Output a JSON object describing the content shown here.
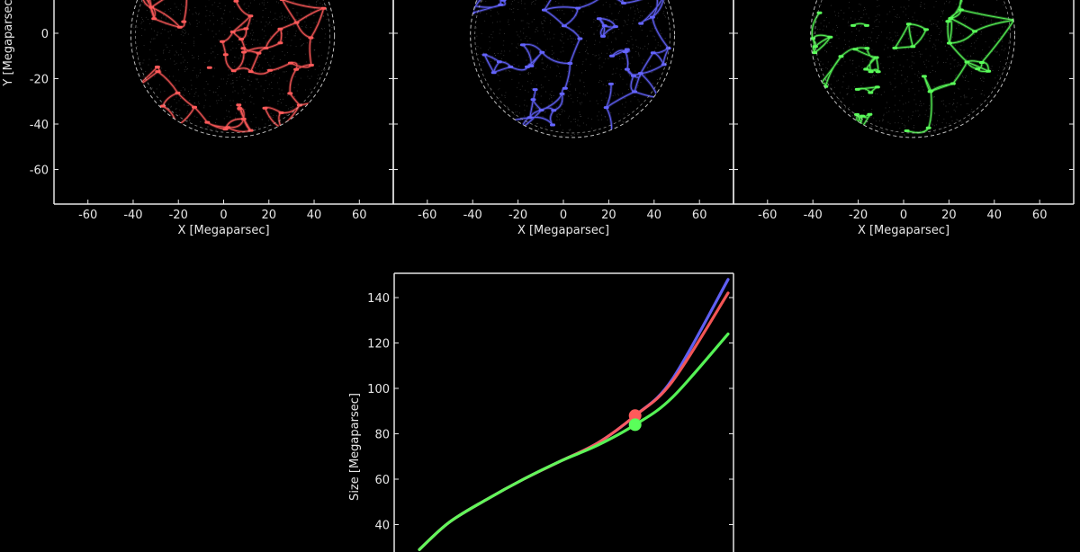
{
  "colors": {
    "background": "#000000",
    "axes": "#e6e6e6",
    "red": "#ff5a5a",
    "blue": "#6464ff",
    "green": "#5aff5a",
    "boundary": "#bfbfbf"
  },
  "chart_data": [
    {
      "type": "scatter",
      "color": "red",
      "xlabel": "X [Megaparsec]",
      "ylabel": "Y [Megaparsec]",
      "xlim": [
        -75,
        75
      ],
      "ylim": [
        -75,
        75
      ],
      "xticks": [
        -60,
        -40,
        -20,
        0,
        20,
        40,
        60
      ],
      "yticks": [
        0,
        -20,
        -40,
        -60
      ],
      "grid": false,
      "sphere_center": [
        4,
        -1
      ],
      "sphere_radius": 45
    },
    {
      "type": "scatter",
      "color": "blue",
      "xlabel": "X [Megaparsec]",
      "xlim": [
        -75,
        75
      ],
      "ylim": [
        -75,
        75
      ],
      "xticks": [
        -60,
        -40,
        -20,
        0,
        20,
        40,
        60
      ],
      "grid": false,
      "sphere_center": [
        4,
        -1
      ],
      "sphere_radius": 45
    },
    {
      "type": "scatter",
      "color": "green",
      "xlabel": "X [Megaparsec]",
      "xlim": [
        -75,
        75
      ],
      "ylim": [
        -75,
        75
      ],
      "xticks": [
        -60,
        -40,
        -20,
        0,
        20,
        40,
        60
      ],
      "grid": false,
      "sphere_center": [
        4,
        -1
      ],
      "sphere_radius": 45
    },
    {
      "type": "line",
      "ylabel": "Size [Megaparsec]",
      "ylim": [
        27,
        151
      ],
      "yticks": [
        40,
        60,
        80,
        100,
        120,
        140
      ],
      "grid": false,
      "series": [
        {
          "color": "blue",
          "x": [
            0.17,
            0.25,
            0.35,
            0.45,
            0.55,
            0.65,
            0.75,
            0.85,
            1.0
          ],
          "values": [
            29,
            41,
            51,
            60,
            68,
            76,
            88,
            104,
            148
          ]
        },
        {
          "color": "red",
          "x": [
            0.17,
            0.25,
            0.35,
            0.45,
            0.55,
            0.65,
            0.75,
            0.85,
            1.0
          ],
          "values": [
            29,
            41,
            51,
            60,
            68,
            76,
            88,
            103,
            142
          ]
        },
        {
          "color": "green",
          "x": [
            0.17,
            0.25,
            0.35,
            0.45,
            0.55,
            0.65,
            0.75,
            0.85,
            1.0
          ],
          "values": [
            29,
            41,
            51,
            60,
            68,
            75,
            84,
            96,
            124
          ]
        }
      ],
      "markers": [
        {
          "color": "red",
          "x": 0.75,
          "y": 88
        },
        {
          "color": "green",
          "x": 0.75,
          "y": 84
        }
      ]
    }
  ]
}
